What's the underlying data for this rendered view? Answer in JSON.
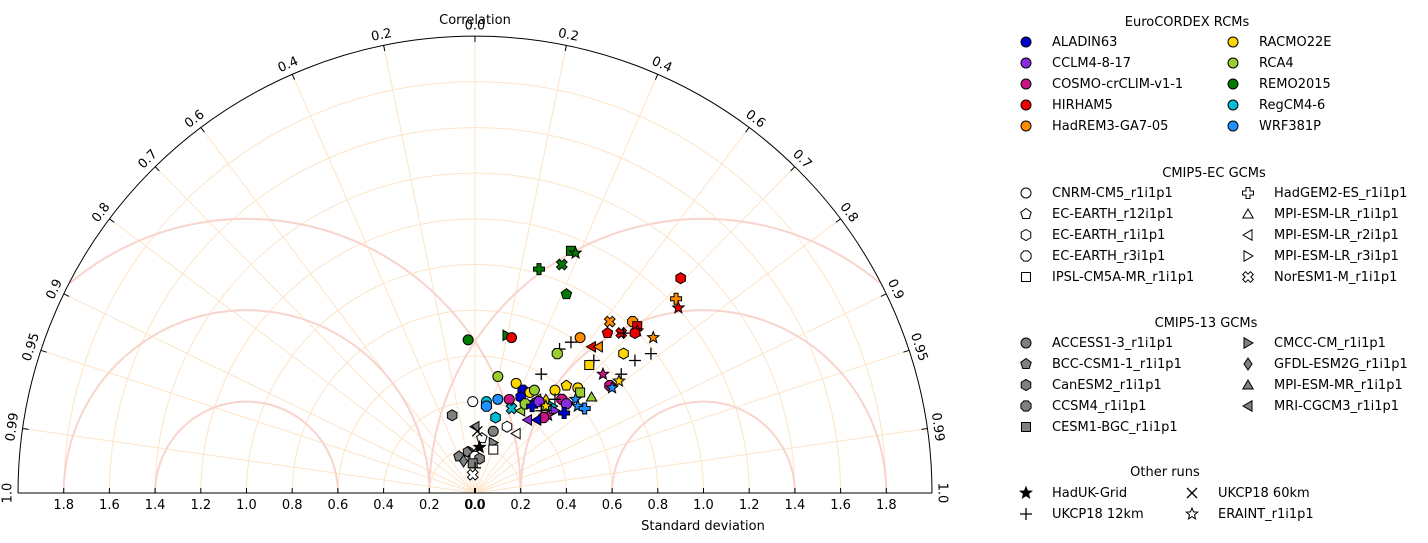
{
  "chart_data": {
    "type": "taylor",
    "top_label": "Correlation",
    "xlabel": "Standard deviation",
    "sd_ticks": [
      "1.8",
      "1.6",
      "1.4",
      "1.2",
      "1.0",
      "0.8",
      "0.6",
      "0.4",
      "0.2",
      "0.0",
      "0.0",
      "0.2",
      "0.4",
      "0.6",
      "0.8",
      "1.0",
      "1.2",
      "1.4",
      "1.6",
      "1.8"
    ],
    "sd_tick_values": [
      -1.8,
      -1.6,
      -1.4,
      -1.2,
      -1.0,
      -0.8,
      -0.6,
      -0.4,
      -0.2,
      0.0,
      0.0,
      0.2,
      0.4,
      0.6,
      0.8,
      1.0,
      1.2,
      1.4,
      1.6,
      1.8
    ],
    "sd_max": 2.0,
    "corr_ticks": [
      {
        "label": "1.0",
        "value": -1.0
      },
      {
        "label": "0.99",
        "value": -0.99
      },
      {
        "label": "0.95",
        "value": -0.95
      },
      {
        "label": "0.9",
        "value": -0.9
      },
      {
        "label": "0.8",
        "value": -0.8
      },
      {
        "label": "0.7",
        "value": -0.7
      },
      {
        "label": "0.6",
        "value": -0.6
      },
      {
        "label": "0.4",
        "value": -0.4
      },
      {
        "label": "0.2",
        "value": -0.2
      },
      {
        "label": "0.0",
        "value": 0.0
      },
      {
        "label": "0.2",
        "value": 0.2
      },
      {
        "label": "0.4",
        "value": 0.4
      },
      {
        "label": "0.6",
        "value": 0.6
      },
      {
        "label": "0.7",
        "value": 0.7
      },
      {
        "label": "0.8",
        "value": 0.8
      },
      {
        "label": "0.9",
        "value": 0.9
      },
      {
        "label": "0.95",
        "value": 0.95
      },
      {
        "label": "0.99",
        "value": 0.99
      },
      {
        "label": "1.0",
        "value": 1.0
      }
    ],
    "rcms": [
      {
        "name": "ALADIN63",
        "color": "#0000cc"
      },
      {
        "name": "CCLM4-8-17",
        "color": "#8a2be2"
      },
      {
        "name": "COSMO-crCLIM-v1-1",
        "color": "#c71585"
      },
      {
        "name": "HIRHAM5",
        "color": "#ee0000"
      },
      {
        "name": "HadREM3-GA7-05",
        "color": "#ff8c00"
      },
      {
        "name": "RACMO22E",
        "color": "#ffd700"
      },
      {
        "name": "RCA4",
        "color": "#9acd32"
      },
      {
        "name": "REMO2015",
        "color": "#007a00"
      },
      {
        "name": "RegCM4-6",
        "color": "#00bcd4"
      },
      {
        "name": "WRF381P",
        "color": "#1e90ff"
      }
    ],
    "legend": {
      "rcm_title": "EuroCORDEX RCMs",
      "ec_title": "CMIP5-EC GCMs",
      "ec_items": [
        {
          "label": "CNRM-CM5_r1i1p1",
          "marker": "circle"
        },
        {
          "label": "EC-EARTH_r12i1p1",
          "marker": "pentagon"
        },
        {
          "label": "EC-EARTH_r1i1p1",
          "marker": "hexagon"
        },
        {
          "label": "EC-EARTH_r3i1p1",
          "marker": "octagon"
        },
        {
          "label": "IPSL-CM5A-MR_r1i1p1",
          "marker": "square"
        },
        {
          "label": "HadGEM2-ES_r1i1p1",
          "marker": "plus"
        },
        {
          "label": "MPI-ESM-LR_r1i1p1",
          "marker": "tri-up"
        },
        {
          "label": "MPI-ESM-LR_r2i1p1",
          "marker": "tri-left"
        },
        {
          "label": "MPI-ESM-LR_r3i1p1",
          "marker": "tri-right"
        },
        {
          "label": "NorESM1-M_r1i1p1",
          "marker": "xfill"
        }
      ],
      "c13_title": "CMIP5-13 GCMs",
      "c13_items": [
        {
          "label": "ACCESS1-3_r1i1p1",
          "marker": "circle"
        },
        {
          "label": "BCC-CSM1-1_r1i1p1",
          "marker": "pentagon"
        },
        {
          "label": "CanESM2_r1i1p1",
          "marker": "hexagon"
        },
        {
          "label": "CCSM4_r1i1p1",
          "marker": "octagon"
        },
        {
          "label": "CESM1-BGC_r1i1p1",
          "marker": "square"
        },
        {
          "label": "CMCC-CM_r1i1p1",
          "marker": "tri-right"
        },
        {
          "label": "GFDL-ESM2G_r1i1p1",
          "marker": "diamond"
        },
        {
          "label": "MPI-ESM-MR_r1i1p1",
          "marker": "tri-up"
        },
        {
          "label": "MRI-CGCM3_r1i1p1",
          "marker": "tri-left"
        }
      ],
      "other_title": "Other runs",
      "other_items": [
        {
          "label": "HadUK-Grid",
          "marker": "star-fill"
        },
        {
          "label": "UKCP18 12km",
          "marker": "cross"
        },
        {
          "label": "UKCP18 60km",
          "marker": "x"
        },
        {
          "label": "ERAINT_r1i1p1",
          "marker": "star-open"
        }
      ]
    },
    "points": [
      {
        "x": 0.9,
        "y": 0.94,
        "m": "hexagon",
        "c": "#ee0000"
      },
      {
        "x": 0.88,
        "y": 0.85,
        "m": "plus",
        "c": "#ff8c00"
      },
      {
        "x": 0.89,
        "y": 0.81,
        "m": "star-fill",
        "c": "#ee0000"
      },
      {
        "x": 0.42,
        "y": 1.06,
        "m": "square",
        "c": "#007a00"
      },
      {
        "x": 0.44,
        "y": 1.05,
        "m": "star-fill",
        "c": "#007a00"
      },
      {
        "x": 0.38,
        "y": 1.0,
        "m": "xfill",
        "c": "#007a00"
      },
      {
        "x": 0.28,
        "y": 0.98,
        "m": "plus",
        "c": "#007a00"
      },
      {
        "x": 0.4,
        "y": 0.87,
        "m": "pentagon",
        "c": "#007a00"
      },
      {
        "x": -0.03,
        "y": 0.67,
        "m": "circle",
        "c": "#007a00"
      },
      {
        "x": 0.14,
        "y": 0.69,
        "m": "tri-right",
        "c": "#007a00"
      },
      {
        "x": 0.16,
        "y": 0.68,
        "m": "circle",
        "c": "#ee0000"
      },
      {
        "x": 0.59,
        "y": 0.75,
        "m": "xfill",
        "c": "#ff8c00"
      },
      {
        "x": 0.69,
        "y": 0.75,
        "m": "octagon",
        "c": "#ff8c00"
      },
      {
        "x": 0.71,
        "y": 0.73,
        "m": "square",
        "c": "#ee0000"
      },
      {
        "x": 0.71,
        "y": 0.71,
        "m": "star-fill",
        "c": "#ee0000"
      },
      {
        "x": 0.7,
        "y": 0.7,
        "m": "hexagon",
        "c": "#ee0000"
      },
      {
        "x": 0.64,
        "y": 0.7,
        "m": "xfill",
        "c": "#ee0000"
      },
      {
        "x": 0.65,
        "y": 0.7,
        "m": "cross",
        "c": "#000000"
      },
      {
        "x": 0.58,
        "y": 0.7,
        "m": "pentagon",
        "c": "#ee0000"
      },
      {
        "x": 0.78,
        "y": 0.68,
        "m": "star-open",
        "c": "#ff8c00"
      },
      {
        "x": 0.46,
        "y": 0.68,
        "m": "circle",
        "c": "#ff8c00"
      },
      {
        "x": 0.51,
        "y": 0.64,
        "m": "tri-left",
        "c": "#ee0000"
      },
      {
        "x": 0.54,
        "y": 0.64,
        "m": "tri-left",
        "c": "#ff8c00"
      },
      {
        "x": 0.42,
        "y": 0.66,
        "m": "cross",
        "c": "#000000"
      },
      {
        "x": 0.37,
        "y": 0.63,
        "m": "cross",
        "c": "#000000"
      },
      {
        "x": 0.36,
        "y": 0.61,
        "m": "octagon",
        "c": "#9acd32"
      },
      {
        "x": 0.52,
        "y": 0.58,
        "m": "cross",
        "c": "#000000"
      },
      {
        "x": 0.65,
        "y": 0.61,
        "m": "hexagon",
        "c": "#ffd700"
      },
      {
        "x": 0.77,
        "y": 0.61,
        "m": "cross",
        "c": "#000000"
      },
      {
        "x": 0.7,
        "y": 0.58,
        "m": "cross",
        "c": "#000000"
      },
      {
        "x": 0.5,
        "y": 0.56,
        "m": "square",
        "c": "#ffd700"
      },
      {
        "x": 0.56,
        "y": 0.52,
        "m": "star-fill",
        "c": "#c71585"
      },
      {
        "x": 0.64,
        "y": 0.52,
        "m": "cross",
        "c": "#000000"
      },
      {
        "x": 0.63,
        "y": 0.49,
        "m": "star-open",
        "c": "#ffd700"
      },
      {
        "x": 0.59,
        "y": 0.47,
        "m": "octagon",
        "c": "#c71585"
      },
      {
        "x": 0.6,
        "y": 0.46,
        "m": "star-fill",
        "c": "#1e90ff"
      },
      {
        "x": 0.29,
        "y": 0.52,
        "m": "cross",
        "c": "#000000"
      },
      {
        "x": 0.1,
        "y": 0.51,
        "m": "circle",
        "c": "#9acd32"
      },
      {
        "x": 0.18,
        "y": 0.48,
        "m": "circle",
        "c": "#ffd700"
      },
      {
        "x": 0.21,
        "y": 0.45,
        "m": "octagon",
        "c": "#0000cc"
      },
      {
        "x": 0.24,
        "y": 0.44,
        "m": "circle",
        "c": "#ffd700"
      },
      {
        "x": 0.26,
        "y": 0.45,
        "m": "circle",
        "c": "#9acd32"
      },
      {
        "x": 0.35,
        "y": 0.45,
        "m": "circle",
        "c": "#ffd700"
      },
      {
        "x": 0.4,
        "y": 0.47,
        "m": "pentagon",
        "c": "#ffd700"
      },
      {
        "x": 0.45,
        "y": 0.46,
        "m": "circle",
        "c": "#ffd700"
      },
      {
        "x": 0.46,
        "y": 0.44,
        "m": "square",
        "c": "#9acd32"
      },
      {
        "x": 0.51,
        "y": 0.42,
        "m": "tri-up",
        "c": "#9acd32"
      },
      {
        "x": 0.44,
        "y": 0.41,
        "m": "star-fill",
        "c": "#1e90ff"
      },
      {
        "x": 0.27,
        "y": 0.41,
        "m": "tri-left",
        "c": "#ffd700"
      },
      {
        "x": 0.31,
        "y": 0.41,
        "m": "tri-up",
        "c": "#ffd700"
      },
      {
        "x": 0.38,
        "y": 0.41,
        "m": "octagon",
        "c": "#c71585"
      },
      {
        "x": 0.4,
        "y": 0.39,
        "m": "octagon",
        "c": "#8a2be2"
      },
      {
        "x": 0.35,
        "y": 0.41,
        "m": "cross",
        "c": "#000000"
      },
      {
        "x": 0.34,
        "y": 0.38,
        "m": "tri-right",
        "c": "#00bcd4"
      },
      {
        "x": 0.45,
        "y": 0.38,
        "m": "star-fill",
        "c": "#1e90ff"
      },
      {
        "x": 0.48,
        "y": 0.37,
        "m": "plus",
        "c": "#1e90ff"
      },
      {
        "x": 0.05,
        "y": 0.4,
        "m": "circle",
        "c": "#00bcd4"
      },
      {
        "x": 0.1,
        "y": 0.41,
        "m": "circle",
        "c": "#1e90ff"
      },
      {
        "x": 0.05,
        "y": 0.38,
        "m": "octagon",
        "c": "#1e90ff"
      },
      {
        "x": 0.15,
        "y": 0.41,
        "m": "circle",
        "c": "#c71585"
      },
      {
        "x": 0.2,
        "y": 0.42,
        "m": "hexagon",
        "c": "#0000cc"
      },
      {
        "x": 0.16,
        "y": 0.37,
        "m": "xfill",
        "c": "#00bcd4"
      },
      {
        "x": 0.2,
        "y": 0.36,
        "m": "tri-left",
        "c": "#9acd32"
      },
      {
        "x": 0.22,
        "y": 0.39,
        "m": "octagon",
        "c": "#9acd32"
      },
      {
        "x": 0.25,
        "y": 0.38,
        "m": "plus",
        "c": "#0000cc"
      },
      {
        "x": 0.28,
        "y": 0.4,
        "m": "octagon",
        "c": "#8a2be2"
      },
      {
        "x": 0.29,
        "y": 0.36,
        "m": "cross",
        "c": "#000000"
      },
      {
        "x": 0.31,
        "y": 0.38,
        "m": "star-fill",
        "c": "#ffd700"
      },
      {
        "x": 0.35,
        "y": 0.36,
        "m": "tri-right",
        "c": "#8a2be2"
      },
      {
        "x": 0.39,
        "y": 0.35,
        "m": "plus",
        "c": "#0000cc"
      },
      {
        "x": 0.32,
        "y": 0.34,
        "m": "star-open",
        "c": "#c71585"
      },
      {
        "x": 0.3,
        "y": 0.33,
        "m": "octagon",
        "c": "#c71585"
      },
      {
        "x": 0.27,
        "y": 0.32,
        "m": "tri-left",
        "c": "#0000cc"
      },
      {
        "x": 0.23,
        "y": 0.32,
        "m": "tri-left",
        "c": "#8a2be2"
      },
      {
        "x": 0.09,
        "y": 0.33,
        "m": "hexagon",
        "c": "#00bcd4"
      },
      {
        "x": -0.01,
        "y": 0.4,
        "m": "circle",
        "c": "#ffffff"
      },
      {
        "x": -0.1,
        "y": 0.34,
        "m": "hexagon",
        "c": "#808080"
      },
      {
        "x": 0.0,
        "y": 0.29,
        "m": "tri-left",
        "c": "#808080"
      },
      {
        "x": 0.08,
        "y": 0.27,
        "m": "circle",
        "c": "#808080"
      },
      {
        "x": 0.14,
        "y": 0.29,
        "m": "hexagon",
        "c": "#ffffff"
      },
      {
        "x": 0.18,
        "y": 0.26,
        "m": "tri-left",
        "c": "#ffffff"
      },
      {
        "x": 0.03,
        "y": 0.24,
        "m": "pentagon",
        "c": "#ffffff"
      },
      {
        "x": 0.01,
        "y": 0.27,
        "m": "x",
        "c": "#000000"
      },
      {
        "x": 0.08,
        "y": 0.22,
        "m": "tri-right",
        "c": "#808080"
      },
      {
        "x": 0.08,
        "y": 0.19,
        "m": "square",
        "c": "#ffffff"
      },
      {
        "x": -0.03,
        "y": 0.18,
        "m": "hexagon",
        "c": "#808080"
      },
      {
        "x": 0.02,
        "y": 0.2,
        "m": "star-fill",
        "c": "#000000"
      },
      {
        "x": -0.01,
        "y": 0.18,
        "m": "x",
        "c": "#000000"
      },
      {
        "x": 0.0,
        "y": 0.16,
        "m": "octagon",
        "c": "#ffffff"
      },
      {
        "x": 0.02,
        "y": 0.15,
        "m": "hexagon",
        "c": "#808080"
      },
      {
        "x": -0.07,
        "y": 0.16,
        "m": "pentagon",
        "c": "#808080"
      },
      {
        "x": -0.05,
        "y": 0.14,
        "m": "diamond",
        "c": "#808080"
      },
      {
        "x": -0.01,
        "y": 0.13,
        "m": "square",
        "c": "#808080"
      },
      {
        "x": 0.0,
        "y": 0.11,
        "m": "cross",
        "c": "#000000"
      },
      {
        "x": -0.01,
        "y": 0.08,
        "m": "xfill",
        "c": "#ffffff"
      }
    ]
  }
}
